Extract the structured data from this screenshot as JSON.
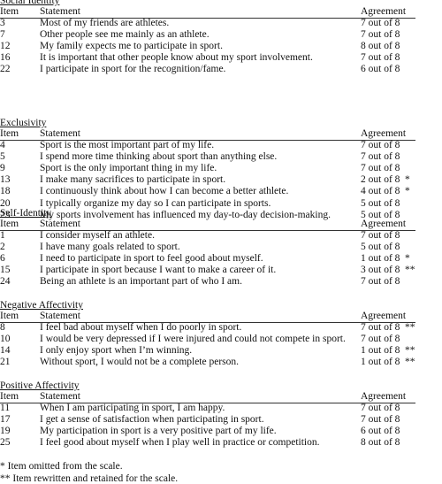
{
  "sections": [
    {
      "title": "Social Identity",
      "headers": [
        "Item",
        "Statement",
        "Agreement"
      ],
      "rows": [
        {
          "item": "3",
          "statement": "Most of my friends are athletes.",
          "agreement": "7 out of 8"
        },
        {
          "item": "7",
          "statement": "Other people see me mainly as an athlete.",
          "agreement": "7 out of 8"
        },
        {
          "item": "12",
          "statement": "My family expects me to participate in sport.",
          "agreement": "8 out of 8"
        },
        {
          "item": "16",
          "statement": "It is important that other people know about my sport involvement.",
          "agreement": "7 out of 8"
        },
        {
          "item": "22",
          "statement": "I participate in sport for the recognition/fame.",
          "agreement": "6 out of 8"
        }
      ]
    },
    {
      "title": "Exclusivity",
      "headers": [
        "Item",
        "Statement",
        "Agreement"
      ],
      "rows": [
        {
          "item": "4",
          "statement": "Sport is the most important part of my life.",
          "agreement": "7 out of 8"
        },
        {
          "item": "5",
          "statement": "I spend more time thinking about sport than anything else.",
          "agreement": "7 out of 8"
        },
        {
          "item": "9",
          "statement": "Sport is the only important thing in my life.",
          "agreement": "7 out of 8"
        },
        {
          "item": "13",
          "statement": "I make many sacrifices to participate in sport.",
          "agreement": "2 out of 8",
          "note": "*"
        },
        {
          "item": "18",
          "statement": "I continuously think about how I can become a better athlete.",
          "agreement": "4 out of 8",
          "note": "*"
        },
        {
          "item": "20",
          "statement": "I typically organize my day so I can participate in sports.",
          "agreement": "5 out of 8"
        },
        {
          "item": "23",
          "statement": "My sports involvement has influenced my day-to-day decision-making.",
          "agreement": "5 out of 8"
        }
      ]
    },
    {
      "title": "Self-Identity",
      "headers": [
        "Item",
        "Statement",
        "Agreement"
      ],
      "rows": [
        {
          "item": "1",
          "statement": "I consider myself an athlete.",
          "agreement": "7 out of 8"
        },
        {
          "item": "2",
          "statement": "I have many goals related to sport.",
          "agreement": "5 out of 8"
        },
        {
          "item": "6",
          "statement": "I need to participate in sport to feel good about myself.",
          "agreement": "1 out of 8",
          "note": "*"
        },
        {
          "item": "15",
          "statement": "I participate in sport because I want to make a career of it.",
          "agreement": "3 out of 8",
          "note": "**"
        },
        {
          "item": "24",
          "statement": "Being an athlete is an important part of who I am.",
          "agreement": "7 out of 8"
        }
      ]
    },
    {
      "title": "Negative Affectivity",
      "headers": [
        "Item",
        "Statement",
        "Agreement"
      ],
      "rows": [
        {
          "item": "8",
          "statement": "I feel bad about myself when I do poorly in sport.",
          "agreement": "7 out of 8",
          "note": "**"
        },
        {
          "item": "10",
          "statement": "I would be very depressed if I were injured and could not compete in sport.",
          "agreement": "7 out of 8"
        },
        {
          "item": "14",
          "statement": "I only enjoy sport when I’m winning.",
          "agreement": "1 out of 8",
          "note": "**"
        },
        {
          "item": "21",
          "statement": "Without sport, I would not be a complete person.",
          "agreement": "1 out of 8",
          "note": "**"
        }
      ]
    },
    {
      "title": "Positive Affectivity",
      "headers": [
        "Item",
        "Statement",
        "Agreement"
      ],
      "rows": [
        {
          "item": "11",
          "statement": "When I am participating in sport, I am happy.",
          "agreement": "7 out of 8"
        },
        {
          "item": "17",
          "statement": "I get a sense of satisfaction when participating in sport.",
          "agreement": "7 out of 8"
        },
        {
          "item": "19",
          "statement": "My participation in sport is a very positive part of my life.",
          "agreement": "6 out of 8"
        },
        {
          "item": "25",
          "statement": "I feel good about myself when I play well in practice or competition.",
          "agreement": "8 out of 8"
        }
      ]
    }
  ],
  "footnotes": [
    "* Item omitted from the scale.",
    "** Item rewritten and retained for the scale."
  ]
}
